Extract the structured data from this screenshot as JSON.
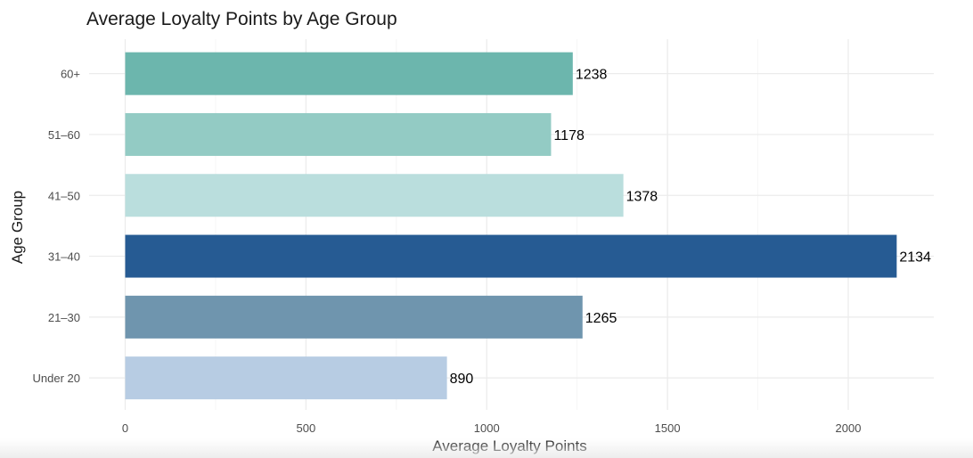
{
  "chart_data": {
    "type": "bar",
    "orientation": "horizontal",
    "title": "Average Loyalty Points by Age Group",
    "xlabel": "Average Loyalty Points",
    "ylabel": "Age Group",
    "categories": [
      "60+",
      "51–60",
      "41–50",
      "31–40",
      "21–30",
      "Under 20"
    ],
    "values": [
      1238,
      1178,
      1378,
      2134,
      1265,
      890
    ],
    "colors": [
      "#6cb6ad",
      "#93cbc4",
      "#badedd",
      "#265b93",
      "#6f95ae",
      "#b7cce3"
    ],
    "xlim": [
      0,
      2230
    ],
    "xticks": [
      0,
      500,
      1000,
      1500,
      2000
    ],
    "xtick_labels": [
      "0",
      "500",
      "1000",
      "1500",
      "2000"
    ],
    "grid": true,
    "legend": "none"
  }
}
